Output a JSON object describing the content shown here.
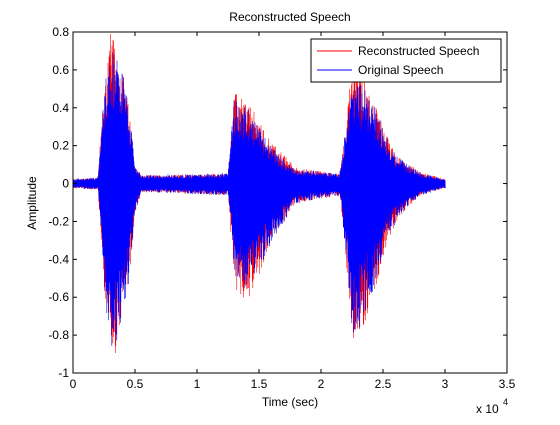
{
  "figure": {
    "background": "#ffffff"
  },
  "chart_data": {
    "type": "line",
    "title": "Reconstructed Speech",
    "xlabel": "Time (sec)",
    "ylabel": "Amplitude",
    "x_multiplier_label": "x 10",
    "x_multiplier_exponent": "4",
    "xlim": [
      0,
      35000
    ],
    "ylim": [
      -1,
      0.8
    ],
    "x_ticks": [
      0,
      5000,
      10000,
      15000,
      20000,
      25000,
      30000,
      35000
    ],
    "x_tick_labels": [
      "0",
      "0.5",
      "1",
      "1.5",
      "2",
      "2.5",
      "3",
      "3.5"
    ],
    "y_ticks": [
      -1,
      -0.8,
      -0.6,
      -0.4,
      -0.2,
      0,
      0.2,
      0.4,
      0.6,
      0.8
    ],
    "y_tick_labels": [
      "-1",
      "-0.8",
      "-0.6",
      "-0.4",
      "-0.2",
      "0",
      "0.2",
      "0.4",
      "0.6",
      "0.8"
    ],
    "grid": false,
    "legend_position": "top-right",
    "signal_end": 30000,
    "series": [
      {
        "name": "Reconstructed Speech",
        "color": "#ff0000",
        "noise_floor": 0.02,
        "envelope_pos": [
          [
            0,
            0.02
          ],
          [
            2000,
            0.03
          ],
          [
            2500,
            0.5
          ],
          [
            3000,
            0.8
          ],
          [
            3300,
            0.75
          ],
          [
            4000,
            0.6
          ],
          [
            4500,
            0.4
          ],
          [
            5000,
            0.1
          ],
          [
            5500,
            0.04
          ],
          [
            12500,
            0.05
          ],
          [
            13000,
            0.48
          ],
          [
            14000,
            0.44
          ],
          [
            15000,
            0.33
          ],
          [
            16000,
            0.22
          ],
          [
            17000,
            0.15
          ],
          [
            18000,
            0.08
          ],
          [
            21500,
            0.05
          ],
          [
            22000,
            0.3
          ],
          [
            22500,
            0.65
          ],
          [
            23000,
            0.62
          ],
          [
            24000,
            0.48
          ],
          [
            25000,
            0.3
          ],
          [
            26000,
            0.15
          ],
          [
            27000,
            0.1
          ],
          [
            28000,
            0.06
          ],
          [
            30000,
            0.02
          ]
        ],
        "envelope_neg": [
          [
            0,
            0.02
          ],
          [
            2000,
            0.03
          ],
          [
            2500,
            0.6
          ],
          [
            3000,
            0.92
          ],
          [
            3300,
            0.92
          ],
          [
            4000,
            0.72
          ],
          [
            4500,
            0.5
          ],
          [
            5000,
            0.15
          ],
          [
            5500,
            0.04
          ],
          [
            12500,
            0.06
          ],
          [
            13000,
            0.55
          ],
          [
            14000,
            0.62
          ],
          [
            15000,
            0.48
          ],
          [
            16000,
            0.3
          ],
          [
            17000,
            0.2
          ],
          [
            18000,
            0.1
          ],
          [
            21500,
            0.06
          ],
          [
            22000,
            0.4
          ],
          [
            22500,
            0.86
          ],
          [
            23000,
            0.82
          ],
          [
            24000,
            0.65
          ],
          [
            25000,
            0.38
          ],
          [
            26000,
            0.2
          ],
          [
            27000,
            0.12
          ],
          [
            28000,
            0.06
          ],
          [
            30000,
            0.02
          ]
        ]
      },
      {
        "name": "Original Speech",
        "color": "#0000ff",
        "noise_floor": 0.02,
        "envelope_pos": [
          [
            0,
            0.02
          ],
          [
            2000,
            0.03
          ],
          [
            2500,
            0.5
          ],
          [
            3000,
            0.7
          ],
          [
            3300,
            0.7
          ],
          [
            4000,
            0.6
          ],
          [
            4500,
            0.4
          ],
          [
            5000,
            0.1
          ],
          [
            5500,
            0.04
          ],
          [
            12500,
            0.05
          ],
          [
            13000,
            0.45
          ],
          [
            14000,
            0.4
          ],
          [
            15000,
            0.3
          ],
          [
            16000,
            0.2
          ],
          [
            17000,
            0.12
          ],
          [
            18000,
            0.07
          ],
          [
            21500,
            0.05
          ],
          [
            22000,
            0.3
          ],
          [
            22500,
            0.55
          ],
          [
            23000,
            0.55
          ],
          [
            24000,
            0.45
          ],
          [
            25000,
            0.3
          ],
          [
            26000,
            0.15
          ],
          [
            27000,
            0.1
          ],
          [
            28000,
            0.05
          ],
          [
            30000,
            0.02
          ]
        ],
        "envelope_neg": [
          [
            0,
            0.02
          ],
          [
            2000,
            0.03
          ],
          [
            2500,
            0.55
          ],
          [
            3000,
            0.88
          ],
          [
            3300,
            0.9
          ],
          [
            4000,
            0.7
          ],
          [
            4500,
            0.5
          ],
          [
            5000,
            0.15
          ],
          [
            5500,
            0.04
          ],
          [
            12500,
            0.06
          ],
          [
            13000,
            0.5
          ],
          [
            14000,
            0.58
          ],
          [
            15000,
            0.45
          ],
          [
            16000,
            0.3
          ],
          [
            17000,
            0.2
          ],
          [
            18000,
            0.1
          ],
          [
            21500,
            0.06
          ],
          [
            22000,
            0.4
          ],
          [
            22500,
            0.8
          ],
          [
            23000,
            0.78
          ],
          [
            24000,
            0.6
          ],
          [
            25000,
            0.35
          ],
          [
            26000,
            0.2
          ],
          [
            27000,
            0.12
          ],
          [
            28000,
            0.06
          ],
          [
            30000,
            0.02
          ]
        ]
      }
    ]
  }
}
